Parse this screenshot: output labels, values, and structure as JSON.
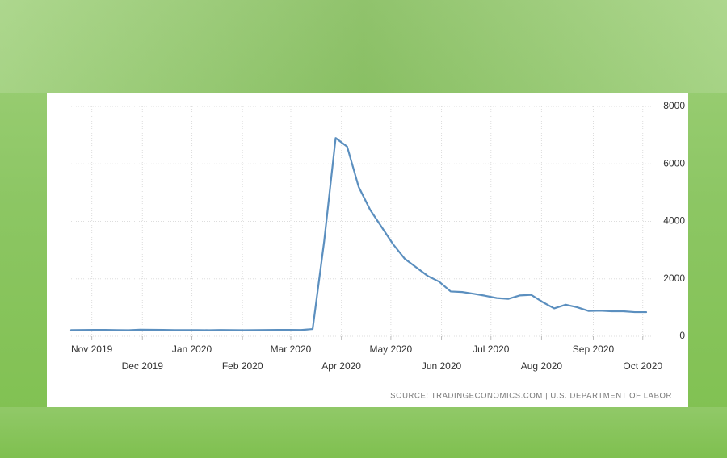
{
  "chart_data": {
    "type": "line",
    "source": "SOURCE: TRADINGECONOMICS.COM | U.S. DEPARTMENT OF LABOR",
    "series": [
      {
        "color": "#5b8fbf",
        "values": [
          215,
          218,
          222,
          220,
          214,
          210,
          228,
          224,
          220,
          216,
          214,
          215,
          212,
          218,
          214,
          211,
          215,
          219,
          220,
          222,
          218,
          250,
          3300,
          6900,
          6600,
          5200,
          4400,
          3800,
          3200,
          2700,
          2400,
          2100,
          1900,
          1560,
          1540,
          1480,
          1410,
          1330,
          1300,
          1420,
          1440,
          1190,
          970,
          1100,
          1010,
          880,
          890,
          870,
          870,
          840,
          840
        ]
      }
    ],
    "xlim": [
      0,
      50
    ],
    "xticks": [
      {
        "value": 1.8,
        "label": "Nov 2019"
      },
      {
        "value": 6.2,
        "label": "Dec 2019"
      },
      {
        "value": 10.5,
        "label": "Jan 2020"
      },
      {
        "value": 14.9,
        "label": "Feb 2020"
      },
      {
        "value": 19.1,
        "label": "Mar 2020"
      },
      {
        "value": 23.5,
        "label": "Apr 2020"
      },
      {
        "value": 27.8,
        "label": "May 2020"
      },
      {
        "value": 32.2,
        "label": "Jun 2020"
      },
      {
        "value": 36.5,
        "label": "Jul 2020"
      },
      {
        "value": 40.9,
        "label": "Aug 2020"
      },
      {
        "value": 45.4,
        "label": "Sep 2020"
      },
      {
        "value": 49.7,
        "label": "Oct 2020"
      }
    ],
    "ylim": [
      0,
      8000
    ],
    "yticks": [
      0,
      2000,
      4000,
      6000,
      8000
    ],
    "grid": true
  }
}
